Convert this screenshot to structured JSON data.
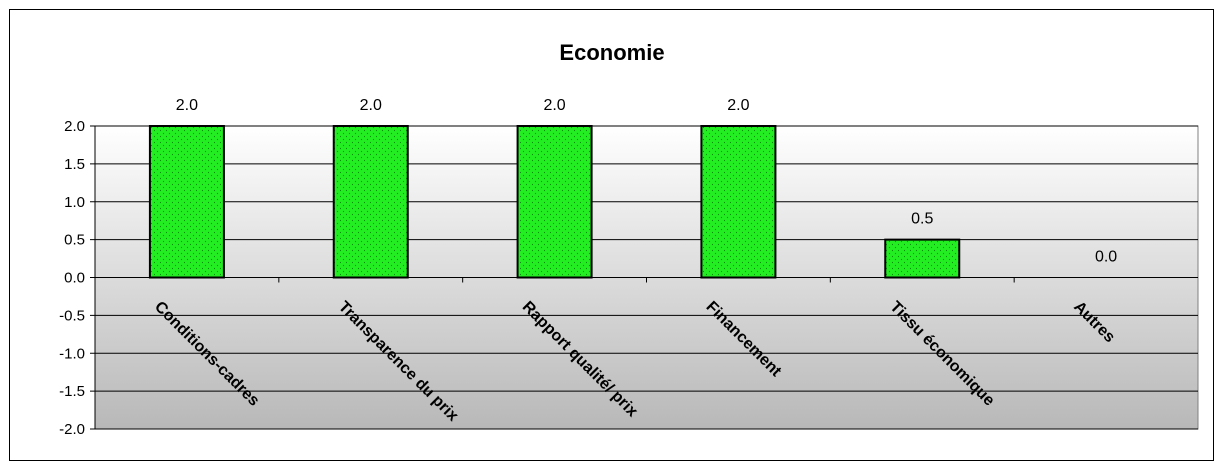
{
  "chart_data": {
    "type": "bar",
    "title": "Economie",
    "categories": [
      "Conditions-cadres",
      "Transparence du prix",
      "Rapport qualité/ prix",
      "Financement",
      "Tissu économique",
      "Autres"
    ],
    "values": [
      2.0,
      2.0,
      2.0,
      2.0,
      0.5,
      0.0
    ],
    "data_labels": [
      "2.0",
      "2.0",
      "2.0",
      "2.0",
      "0.5",
      "0.0"
    ],
    "y_ticks": [
      "2.0",
      "1.5",
      "1.0",
      "0.5",
      "0.0",
      "-0.5",
      "-1.0",
      "-1.5",
      "-2.0"
    ],
    "ylim": [
      -2.0,
      2.0
    ],
    "grid": true,
    "colors": {
      "bar_fill": "#22ee22",
      "bar_border": "#000000",
      "plot_top": "#ffffff",
      "plot_bottom": "#b8b8b8",
      "grid": "#000000"
    }
  }
}
